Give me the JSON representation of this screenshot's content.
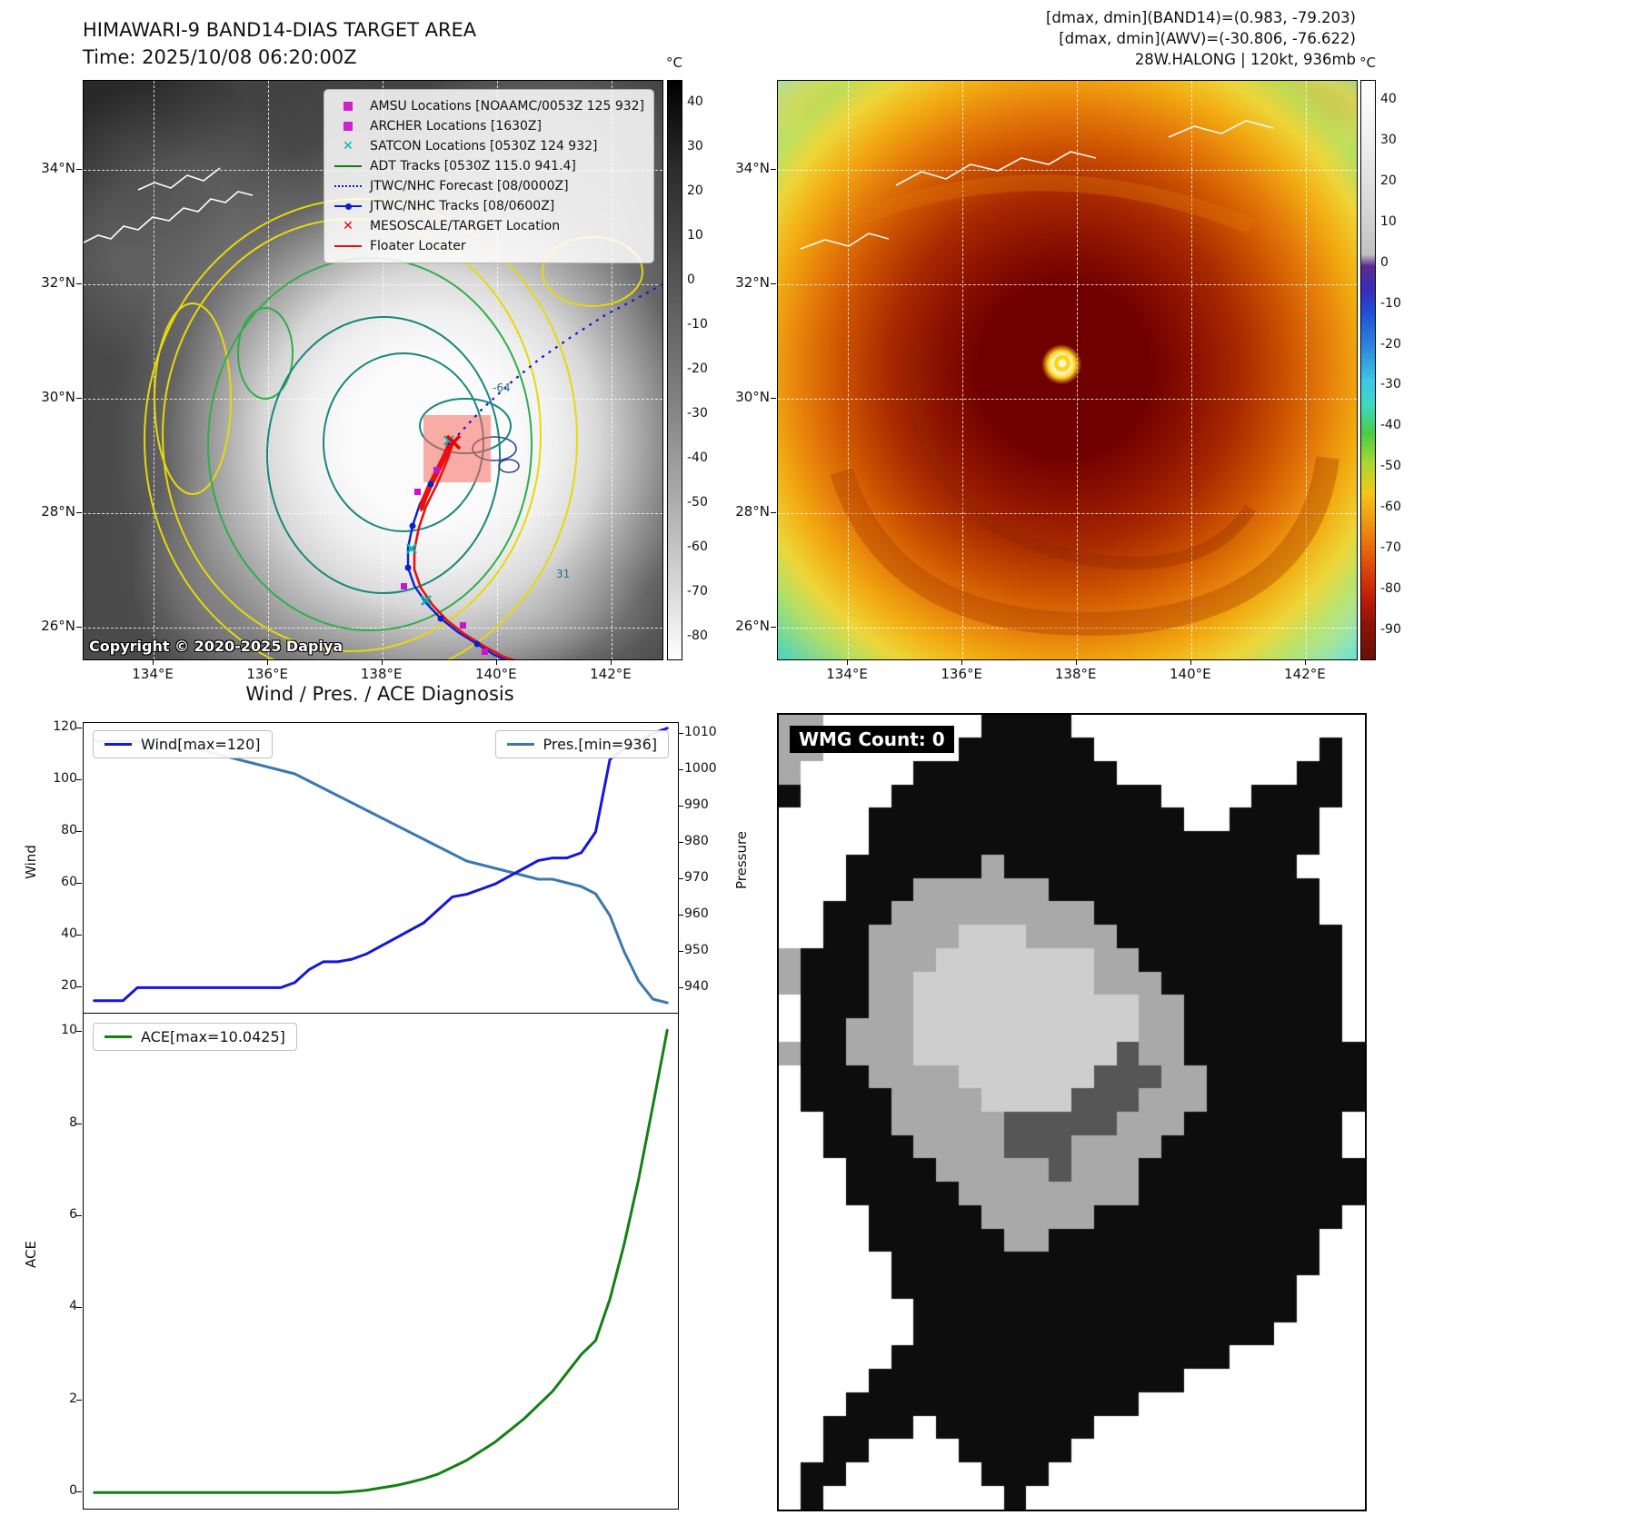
{
  "panel_tl": {
    "title": "HIMAWARI-9 BAND14-DIAS TARGET AREA",
    "subtitle": "Time: 2025/10/08 06:20:00Z",
    "copyright": "Copyright © 2020-2025 Dapiya",
    "x_ticks": [
      "134°E",
      "136°E",
      "138°E",
      "140°E",
      "142°E"
    ],
    "y_ticks": [
      "34°N",
      "32°N",
      "30°N",
      "28°N",
      "26°N"
    ],
    "contour_labels": [
      "-64",
      "31"
    ],
    "colorbar": {
      "unit": "°C",
      "ticks": [
        40,
        30,
        20,
        10,
        0,
        -10,
        -20,
        -30,
        -40,
        -50,
        -60,
        -70,
        -80
      ],
      "range": [
        45,
        -85
      ]
    },
    "legend": [
      {
        "label": "AMSU Locations [NOAAMC/0053Z 125 932]",
        "marker": "square",
        "color": "#cc22cc"
      },
      {
        "label": "ARCHER Locations [1630Z]",
        "marker": "square",
        "color": "#cc22cc"
      },
      {
        "label": "SATCON Locations [0530Z 124 932]",
        "marker": "x",
        "color": "#00b5b5"
      },
      {
        "label": "ADT Tracks [0530Z 115.0 941.4]",
        "marker": "line",
        "color": "#127a12"
      },
      {
        "label": "JTWC/NHC Forecast [08/0000Z]",
        "marker": "dotted",
        "color": "#1414dd"
      },
      {
        "label": "JTWC/NHC Tracks [08/0600Z]",
        "marker": "line-dot",
        "color": "#0a1fd0"
      },
      {
        "label": "MESOSCALE/TARGET Location",
        "marker": "x",
        "color": "#ee0000"
      },
      {
        "label": "Floater Locater",
        "marker": "line",
        "color": "#e81010"
      }
    ]
  },
  "panel_tr": {
    "header_lines": [
      "[dmax, dmin](BAND14)=(0.983, -79.203)",
      "[dmax, dmin](AWV)=(-30.806, -76.622)",
      "28W.HALONG | 120kt, 936mb"
    ],
    "x_ticks": [
      "134°E",
      "136°E",
      "138°E",
      "140°E",
      "142°E"
    ],
    "y_ticks": [
      "34°N",
      "32°N",
      "30°N",
      "28°N",
      "26°N"
    ],
    "colorbar": {
      "unit": "°C",
      "ticks": [
        40,
        30,
        20,
        10,
        0,
        -10,
        -20,
        -30,
        -40,
        -50,
        -60,
        -70,
        -80,
        -90
      ],
      "range": [
        45,
        -97
      ]
    }
  },
  "charts_title": "Wind / Pres. / ACE Diagnosis",
  "chart_data": [
    {
      "type": "line",
      "title": "Wind / Pres. / ACE Diagnosis",
      "xlabel": "",
      "ylabel_left": "Wind",
      "ylabel_right": "Pressure",
      "ylim_left": [
        10,
        122
      ],
      "ylim_right": [
        933,
        1013
      ],
      "yticks_left": [
        20,
        40,
        60,
        80,
        100,
        120
      ],
      "yticks_right": [
        940,
        950,
        960,
        970,
        980,
        990,
        1000,
        1010
      ],
      "grid": false,
      "series": [
        {
          "name": "Wind[max=120]",
          "axis": "left",
          "color": "#1515dd",
          "values": [
            15,
            15,
            15,
            20,
            20,
            20,
            20,
            20,
            20,
            20,
            20,
            20,
            20,
            20,
            22,
            27,
            30,
            30,
            31,
            33,
            36,
            39,
            42,
            45,
            50,
            55,
            56,
            58,
            60,
            63,
            66,
            69,
            70,
            70,
            72,
            80,
            108,
            112,
            115,
            118,
            120
          ]
        },
        {
          "name": "Pres.[min=936]",
          "axis": "right",
          "color": "#3b78b0",
          "values": [
            1008,
            1008,
            1008,
            1008,
            1007,
            1007,
            1006,
            1006,
            1005,
            1004,
            1003,
            1002,
            1001,
            1000,
            999,
            997,
            995,
            993,
            991,
            989,
            987,
            985,
            983,
            981,
            979,
            977,
            975,
            974,
            973,
            972,
            971,
            970,
            970,
            969,
            968,
            966,
            960,
            950,
            942,
            937,
            936
          ]
        }
      ]
    },
    {
      "type": "line",
      "ylabel": "ACE",
      "ylim": [
        -0.35,
        10.4
      ],
      "yticks": [
        0,
        2,
        4,
        6,
        8,
        10
      ],
      "grid": false,
      "series": [
        {
          "name": "ACE[max=10.0425]",
          "color": "#148014",
          "values": [
            0,
            0,
            0,
            0,
            0,
            0,
            0,
            0,
            0,
            0,
            0,
            0,
            0,
            0,
            0,
            0,
            0,
            0,
            0.02,
            0.05,
            0.1,
            0.15,
            0.22,
            0.3,
            0.4,
            0.55,
            0.7,
            0.9,
            1.1,
            1.35,
            1.6,
            1.9,
            2.2,
            2.6,
            3.0,
            3.3,
            4.2,
            5.4,
            6.8,
            8.4,
            10.04
          ]
        }
      ]
    }
  ],
  "wmg": {
    "label": "WMG Count: 0",
    "palette": {
      ".": "#ffffff",
      "k": "#0d0d0d",
      "g": "#a9a9a9",
      "d": "#565656",
      "l": "#cecece"
    },
    "rows": [
      "gg.......kkkk.............",
      "gg......kkkkkk..........k.",
      "g.....kkkkkkkkk........kk.",
      "k....kkkkkkkkkkkk....kkkk.",
      "....kkkkkkkkkkkkkk..kkkk..",
      "....kkkkkkkkkkkkkkkkkkkk..",
      "...kkkkkkgkkkkkkkkkkkkk...",
      "...kkkggggggkkkkkkkkkkkk..",
      "..kkkgggggggggkkkkkkkkkk..",
      "..kkgggglllggggkkkkkkkkkk.",
      "gkkkggglllllllggkkkkkkkkk.",
      "gkkkggllllllllgggkkkkkkkk.",
      ".kkkggllllllllllggkkkkkkk.",
      ".kkgggllllllllllggkkkkkkk.",
      "gkkgggllllllllldggkkkkkkkk",
      ".kkkgggglllllldddggkkkkkkk",
      ".kkkkgggglllldddgggkkkkkkk",
      "..kkkgggggdddddgggkkkkkkk.",
      "..kkkkggggdddggggkkkkkkkk.",
      "...kkkkgggggdgggkkkkkkkkkk",
      "...kkkkkggggggggkkkkkkkkkk",
      "....kkkkkgggggkkkkkkkkkkk.",
      "....kkkkkkggkkkkkkkkkkkk..",
      ".....kkkkkkkkkkkkkkkkkkk..",
      ".....kkkkkkkkkkkkkkkkkk...",
      "......kkkkkkkkkkkkkkkkk...",
      "......kkkkkkkkkkkkkkkk....",
      ".....kkkkkkkkkkkkkkk......",
      "....kkkkkkkkkkkkkk........",
      "...kkkkkkkkkkkkk..........",
      "..kkkk.kkkkkkk............",
      "..kk....kkkkk.............",
      ".kk......kkk..............",
      ".k........k..............."
    ]
  }
}
